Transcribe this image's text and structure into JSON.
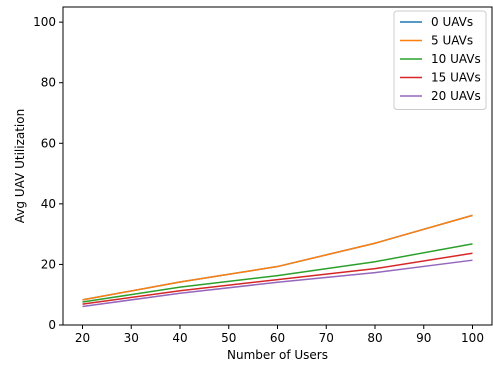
{
  "chart_data": {
    "type": "line",
    "title": "",
    "xlabel": "Number of Users",
    "ylabel": "Avg UAV Utilization",
    "xlim": [
      16,
      104
    ],
    "ylim": [
      0,
      105
    ],
    "x": [
      20,
      40,
      60,
      80,
      100
    ],
    "xticks": [
      20,
      30,
      40,
      50,
      60,
      70,
      80,
      90,
      100
    ],
    "yticks": [
      0,
      20,
      40,
      60,
      80,
      100
    ],
    "grid": false,
    "legend_position": "top-right",
    "series": [
      {
        "name": "0 UAVs",
        "color": "#1f77b4",
        "values": [
          8.3,
          14.2,
          19.3,
          27.0,
          36.2
        ]
      },
      {
        "name": "5 UAVs",
        "color": "#ff7f0e",
        "values": [
          8.3,
          14.2,
          19.3,
          27.0,
          36.2
        ]
      },
      {
        "name": "10 UAVs",
        "color": "#2ca02c",
        "values": [
          7.6,
          12.5,
          16.3,
          20.9,
          26.8
        ]
      },
      {
        "name": "15 UAVs",
        "color": "#d62728",
        "values": [
          6.9,
          11.3,
          15.0,
          18.6,
          23.7
        ]
      },
      {
        "name": "20 UAVs",
        "color": "#9467bd",
        "values": [
          6.1,
          10.5,
          14.1,
          17.3,
          21.4
        ]
      }
    ]
  }
}
